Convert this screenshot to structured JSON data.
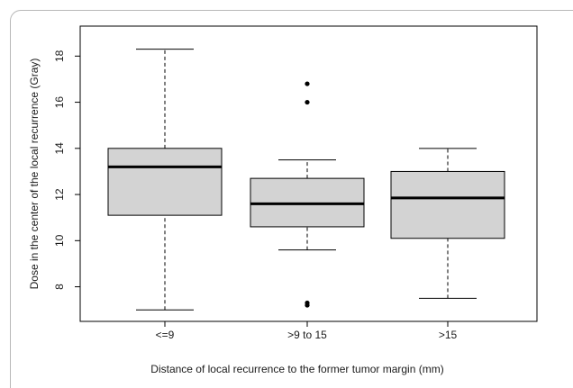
{
  "chart_data": {
    "type": "boxplot",
    "xlabel": "Distance of local recurrence to the former tumor margin (mm)",
    "ylabel": "Dose in the center of the local recurrence (Gray)",
    "categories": [
      "<=9",
      ">9 to 15",
      ">15"
    ],
    "ylim": [
      6.5,
      19.3
    ],
    "yticks": [
      8,
      10,
      12,
      14,
      16,
      18
    ],
    "grid": false,
    "boxes": [
      {
        "category": "<=9",
        "whisker_low": 7.0,
        "q1": 11.1,
        "median": 13.2,
        "q3": 14.0,
        "whisker_high": 18.3,
        "outliers": []
      },
      {
        "category": ">9 to 15",
        "whisker_low": 9.6,
        "q1": 10.6,
        "median": 11.6,
        "q3": 12.7,
        "whisker_high": 13.5,
        "outliers": [
          16.8,
          16.0,
          7.3,
          7.2
        ]
      },
      {
        "category": ">15",
        "whisker_low": 7.5,
        "q1": 10.1,
        "median": 11.85,
        "q3": 13.0,
        "whisker_high": 14.0,
        "outliers": []
      }
    ],
    "colors": {
      "box_fill": "#d3d3d3",
      "stroke": "#000000"
    }
  }
}
